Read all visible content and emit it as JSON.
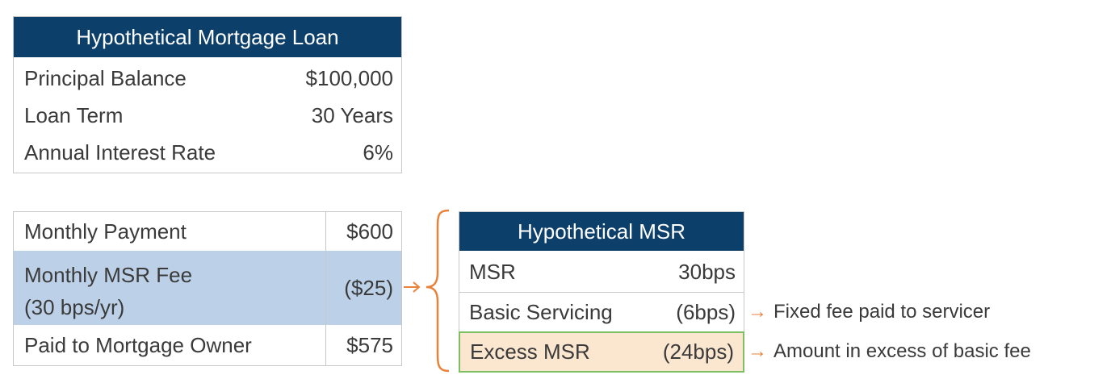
{
  "loan_table": {
    "title": "Hypothetical Mortgage Loan",
    "rows": [
      {
        "label": "Principal Balance",
        "value": "$100,000"
      },
      {
        "label": "Loan Term",
        "value": "30 Years"
      },
      {
        "label": "Annual Interest Rate",
        "value": "6%"
      }
    ]
  },
  "payment_table": {
    "rows": [
      {
        "label": "Monthly Payment",
        "value": "$600"
      },
      {
        "label": "Monthly MSR Fee",
        "sublabel": "(30 bps/yr)",
        "value": "($25)"
      },
      {
        "label": "Paid to Mortgage Owner",
        "value": "$575"
      }
    ]
  },
  "msr_table": {
    "title": "Hypothetical MSR",
    "rows": [
      {
        "label": "MSR",
        "value": "30bps"
      },
      {
        "label": "Basic Servicing",
        "value": "(6bps)"
      },
      {
        "label": "Excess MSR",
        "value": "(24bps)"
      }
    ]
  },
  "annotations": {
    "basic_servicing": "Fixed fee paid to servicer",
    "excess_msr": "Amount in excess of basic fee"
  },
  "colors": {
    "header_navy": "#0d3f6b",
    "highlight_blue": "#bcd1e8",
    "excess_fill": "#fbe6cf",
    "excess_border": "#7cc063",
    "accent_orange": "#e8823a",
    "border_gray": "#c8c8c8"
  }
}
